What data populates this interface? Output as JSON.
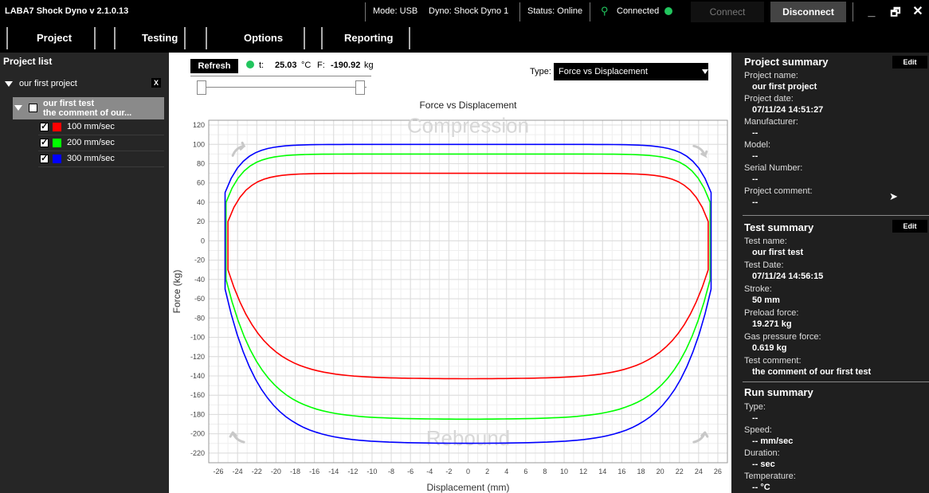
{
  "titlebar": {
    "app_title": "LABA7 Shock Dyno  v 2.1.0.13",
    "mode": "Mode: USB",
    "dyno": "Dyno: Shock Dyno 1",
    "status": "Status: Online",
    "connected": "Connected",
    "connect_label": "Connect",
    "disconnect_label": "Disconnect",
    "minimize": "_",
    "restore": "🗗",
    "close": "✕"
  },
  "menu": {
    "project": "Project",
    "testing": "Testing",
    "options": "Options",
    "reporting": "Reporting"
  },
  "project_list": {
    "title": "Project list",
    "project_name": "our first project",
    "remove_label": "X",
    "test_name": "our first test",
    "test_comment": "the comment of our...",
    "runs": [
      {
        "label": "100 mm/sec",
        "color": "#ff0000",
        "checked": true
      },
      {
        "label": "200 mm/sec",
        "color": "#00ff00",
        "checked": true
      },
      {
        "label": "300 mm/sec",
        "color": "#0000ff",
        "checked": true
      }
    ]
  },
  "controls": {
    "refresh_label": "Refresh",
    "t_label": "t:",
    "t_value": "25.03",
    "t_unit": "°C",
    "f_label": "F:",
    "f_value": "-190.92",
    "f_unit": "kg",
    "type_label": "Type:",
    "type_value": "Force vs Displacement"
  },
  "chart_data": {
    "type": "line",
    "title": "Force vs Displacement",
    "xlabel": "Displacement (mm)",
    "ylabel": "Force (kg)",
    "xlim": [
      -27,
      27
    ],
    "ylim": [
      -230,
      125
    ],
    "xticks": [
      -26,
      -24,
      -22,
      -20,
      -18,
      -16,
      -14,
      -12,
      -10,
      -8,
      -6,
      -4,
      -2,
      0,
      2,
      4,
      6,
      8,
      10,
      12,
      14,
      16,
      18,
      20,
      22,
      24,
      26
    ],
    "yticks": [
      120,
      100,
      80,
      60,
      40,
      20,
      0,
      -20,
      -40,
      -60,
      -80,
      -100,
      -120,
      -140,
      -160,
      -180,
      -200,
      -220
    ],
    "grid": true,
    "watermark_top": "Compression",
    "watermark_bottom": "Rebound",
    "series": [
      {
        "color": "#ff0000",
        "x_range": [
          -25,
          25
        ],
        "top": 70,
        "bottom": -143,
        "top_start": 20,
        "bottom_start": -30
      },
      {
        "color": "#00ff00",
        "x_range": [
          -25.2,
          25.2
        ],
        "top": 90,
        "bottom": -185,
        "top_start": 40,
        "bottom_start": -40
      },
      {
        "color": "#0000ff",
        "x_range": [
          -25.3,
          25.3
        ],
        "top": 100,
        "bottom": -210,
        "top_start": 50,
        "bottom_start": -50
      }
    ]
  },
  "project_summary": {
    "title": "Project summary",
    "edit_label": "Edit",
    "fields": [
      {
        "label": "Project name:",
        "value": "our first project"
      },
      {
        "label": "Project date:",
        "value": "07/11/24 14:51:27"
      },
      {
        "label": "Manufacturer:",
        "value": "--"
      },
      {
        "label": "Model:",
        "value": "--"
      },
      {
        "label": "Serial Number:",
        "value": "--"
      },
      {
        "label": "Project comment:",
        "value": "--"
      }
    ]
  },
  "test_summary": {
    "title": "Test summary",
    "edit_label": "Edit",
    "fields": [
      {
        "label": "Test name:",
        "value": "our first test"
      },
      {
        "label": "Test Date:",
        "value": "07/11/24 14:56:15"
      },
      {
        "label": "Stroke:",
        "value": "50 mm"
      },
      {
        "label": "Preload force:",
        "value": "19.271 kg"
      },
      {
        "label": "Gas pressure force:",
        "value": "0.619 kg"
      },
      {
        "label": "Test comment:",
        "value": "the comment of our first test"
      }
    ]
  },
  "run_summary": {
    "title": "Run summary",
    "fields": [
      {
        "label": "Type:",
        "value": "--"
      },
      {
        "label": "Speed:",
        "value": "-- mm/sec"
      },
      {
        "label": "Duration:",
        "value": "-- sec"
      },
      {
        "label": "Temperature:",
        "value": "-- °C"
      }
    ]
  }
}
